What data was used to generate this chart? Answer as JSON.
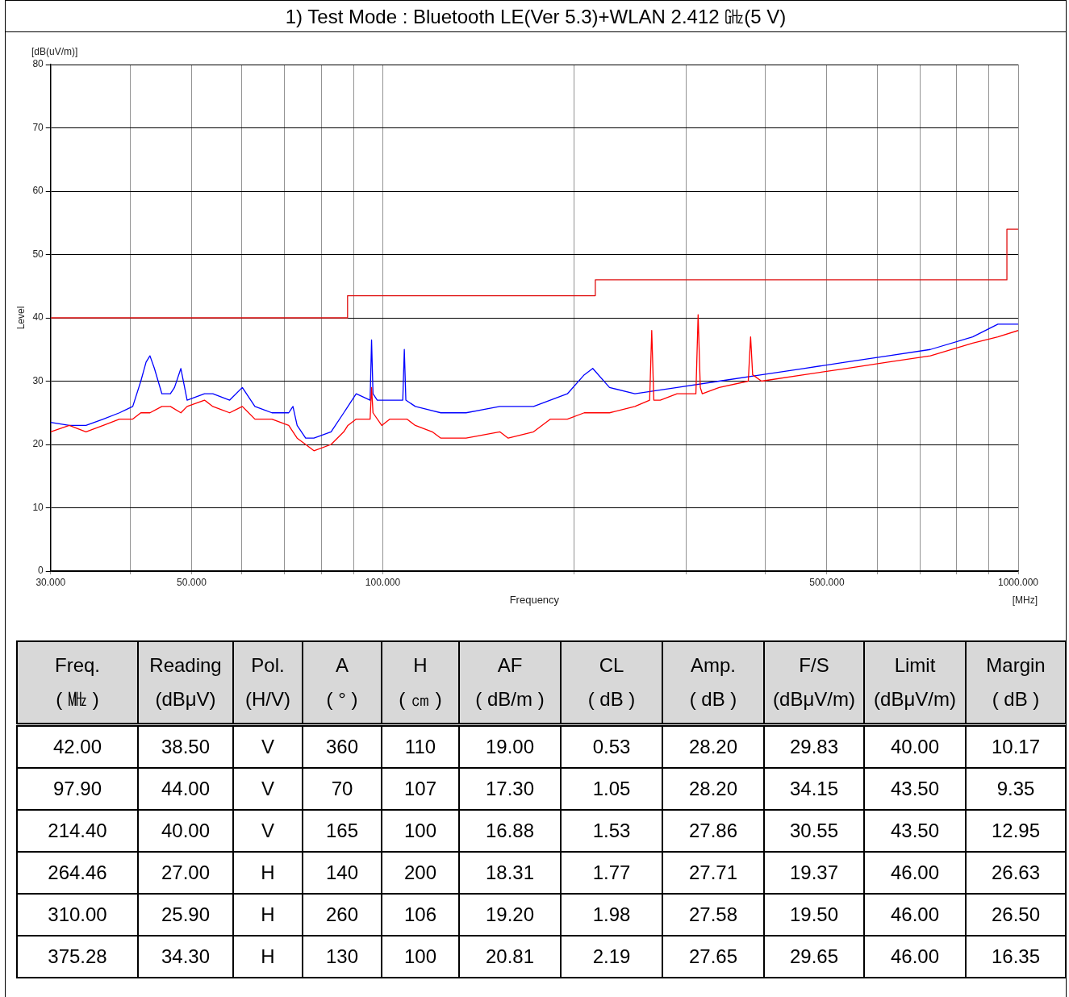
{
  "chart_data": [
    {
      "type": "line",
      "title": "1) Test Mode :  Bluetooth LE(Ver 5.3)+WLAN 2.412 ㎓(5 V)",
      "xlabel": "Frequency",
      "ylabel": "Level",
      "annotations": [
        "[dB(uV/m)]",
        "[MHz]"
      ],
      "log": "x",
      "grid": true,
      "legend": false,
      "marker": "none",
      "line_style": "solid",
      "xlim": [
        30,
        1000
      ],
      "ylim": [
        0,
        80
      ],
      "xticks": [
        {
          "value": 30,
          "label": "30.000"
        },
        {
          "value": 40,
          "label": null
        },
        {
          "value": 50,
          "label": "50.000"
        },
        {
          "value": 60,
          "label": null
        },
        {
          "value": 70,
          "label": null
        },
        {
          "value": 80,
          "label": null
        },
        {
          "value": 90,
          "label": null
        },
        {
          "value": 100,
          "label": "100.000"
        },
        {
          "value": 200,
          "label": null
        },
        {
          "value": 300,
          "label": null
        },
        {
          "value": 400,
          "label": null
        },
        {
          "value": 500,
          "label": "500.000"
        },
        {
          "value": 600,
          "label": null
        },
        {
          "value": 700,
          "label": null
        },
        {
          "value": 800,
          "label": null
        },
        {
          "value": 900,
          "label": null
        },
        {
          "value": 1000,
          "label": "1000.000"
        }
      ],
      "yticks": [
        0,
        10,
        20,
        30,
        40,
        50,
        60,
        70,
        80
      ],
      "series": [
        {
          "type": "line",
          "color": "#ff0000",
          "x": [
            30,
            32.1,
            34.1,
            36.3,
            38.5,
            40.4,
            41.6,
            43,
            44.9,
            46.3,
            48.1,
            49.2,
            52.4,
            54,
            57.4,
            60.1,
            62.9,
            66.9,
            71.1,
            73.3,
            75.6,
            77.9,
            82.9,
            86.8,
            88.1,
            90.8,
            95.5,
            96,
            96.5,
            99.6,
            102.6,
            108.1,
            109.1,
            112.5,
            119.6,
            123.4,
            135.2,
            152.8,
            157.5,
            172.7,
            183.6,
            195.2,
            207.5,
            214,
            227.4,
            249.3,
            263,
            265,
            267,
            273.3,
            290.5,
            311,
            313.5,
            316,
            318.3,
            338.4,
            376,
            379.2,
            382,
            394.5,
            459.6,
            535.8,
            624.3,
            727.5,
            848.1,
            929.1,
            1000
          ],
          "values": [
            22,
            23,
            22,
            23,
            24,
            24,
            25,
            25,
            26,
            26,
            25,
            26,
            27,
            26,
            25,
            26,
            24,
            24,
            23,
            21,
            20,
            19,
            20,
            22,
            23,
            24,
            24,
            29,
            25,
            23,
            24,
            24,
            24,
            23,
            22,
            21,
            21,
            22,
            21,
            22,
            24,
            24,
            25,
            25,
            25,
            26,
            27,
            38,
            27,
            27,
            28,
            28,
            40.5,
            29,
            28,
            29,
            30,
            37,
            31,
            30,
            31,
            32,
            33,
            34,
            36,
            37,
            38
          ]
        },
        {
          "type": "line",
          "color": "#0000ff",
          "x": [
            30,
            32.1,
            34.1,
            36.3,
            38.5,
            40.4,
            41.6,
            42.4,
            43,
            43.7,
            44.9,
            46.3,
            47,
            48.1,
            49.2,
            52.4,
            54,
            57.4,
            60.1,
            62.9,
            66.9,
            71.1,
            72.2,
            73.3,
            75.6,
            77.9,
            82.9,
            86.8,
            90.8,
            95.5,
            96,
            96.5,
            98,
            102.6,
            107.5,
            108.1,
            108.7,
            112.5,
            123.4,
            135.2,
            152.8,
            172.7,
            195.2,
            207.5,
            214,
            227.4,
            249.3,
            290.5,
            338.4,
            394.5,
            459.6,
            535.8,
            624.3,
            727.5,
            848.1,
            929.1,
            1000
          ],
          "values": [
            23.5,
            23,
            23,
            24,
            25,
            26,
            30,
            33,
            34,
            32,
            28,
            28,
            29,
            32,
            27,
            28,
            28,
            27,
            29,
            26,
            25,
            25,
            26,
            23,
            21,
            21,
            22,
            25,
            28,
            27,
            36.5,
            28,
            27,
            27,
            27,
            35,
            27,
            26,
            25,
            25,
            26,
            26,
            28,
            31,
            32,
            29,
            28,
            29,
            30,
            31,
            32,
            33,
            34,
            35,
            37,
            39,
            39
          ]
        },
        {
          "type": "step",
          "color": "#e01010",
          "x": [
            30,
            88,
            216,
            960,
            1000
          ],
          "values": [
            40,
            43.5,
            46,
            54,
            54
          ]
        }
      ]
    },
    {
      "type": "other",
      "categories": [
        "Freq.\n( ㎒ )",
        "Reading\n(dBμV)",
        "Pol.\n(H/V)",
        "A\n( ° )",
        "H\n( ㎝ )",
        "AF\n( dB/m )",
        "CL\n( dB )",
        "Amp.\n( dB )",
        "F/S\n(dBμV/m)",
        "Limit\n(dBμV/m)",
        "Margin\n( dB )"
      ],
      "annotations": [
        "42.00",
        "38.50",
        "V",
        "360",
        "110",
        "19.00",
        "0.53",
        "28.20",
        "29.83",
        "40.00",
        "10.17",
        "97.90",
        "44.00",
        "V",
        "70",
        "107",
        "17.30",
        "1.05",
        "28.20",
        "34.15",
        "43.50",
        "9.35",
        "214.40",
        "40.00",
        "V",
        "165",
        "100",
        "16.88",
        "1.53",
        "27.86",
        "30.55",
        "43.50",
        "12.95",
        "264.46",
        "27.00",
        "H",
        "140",
        "200",
        "18.31",
        "1.77",
        "27.71",
        "19.37",
        "46.00",
        "26.63",
        "310.00",
        "25.90",
        "H",
        "260",
        "106",
        "19.20",
        "1.98",
        "27.58",
        "19.50",
        "46.00",
        "26.50",
        "375.28",
        "34.30",
        "H",
        "130",
        "100",
        "20.81",
        "2.19",
        "27.65",
        "29.65",
        "46.00",
        "16.35"
      ]
    }
  ]
}
